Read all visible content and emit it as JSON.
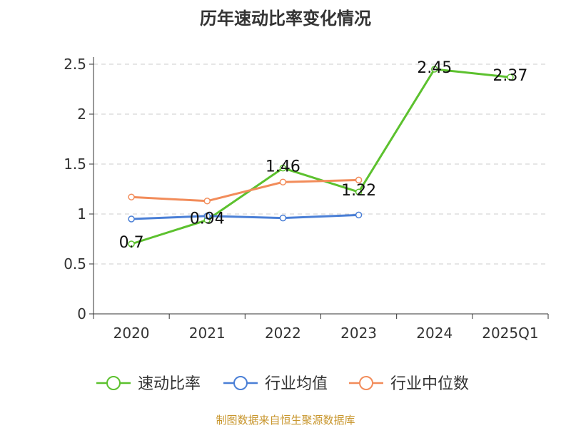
{
  "chart_data": {
    "type": "line",
    "title": "历年速动比率变化情况",
    "categories": [
      "2020",
      "2021",
      "2022",
      "2023",
      "2024",
      "2025Q1"
    ],
    "ylim": [
      0,
      2.5
    ],
    "yticks": [
      0,
      0.5,
      1,
      1.5,
      2,
      2.5
    ],
    "ytick_labels": [
      "0",
      "0.5",
      "1",
      "1.5",
      "2",
      "2.5"
    ],
    "grid": true,
    "legend_position": "bottom",
    "series": [
      {
        "name": "速动比率",
        "color": "#5cc12e",
        "show_labels": true,
        "values": [
          0.7,
          0.94,
          1.46,
          1.22,
          2.45,
          2.37
        ],
        "labels": [
          "0.7",
          "0.94",
          "1.46",
          "1.22",
          "2.45",
          "2.37"
        ]
      },
      {
        "name": "行业均值",
        "color": "#4a7fd6",
        "show_labels": false,
        "values": [
          0.95,
          0.98,
          0.96,
          0.99,
          null,
          null
        ]
      },
      {
        "name": "行业中位数",
        "color": "#f28c5a",
        "show_labels": false,
        "values": [
          1.17,
          1.13,
          1.32,
          1.34,
          null,
          null
        ]
      }
    ]
  },
  "source": "制图数据来自恒生聚源数据库"
}
